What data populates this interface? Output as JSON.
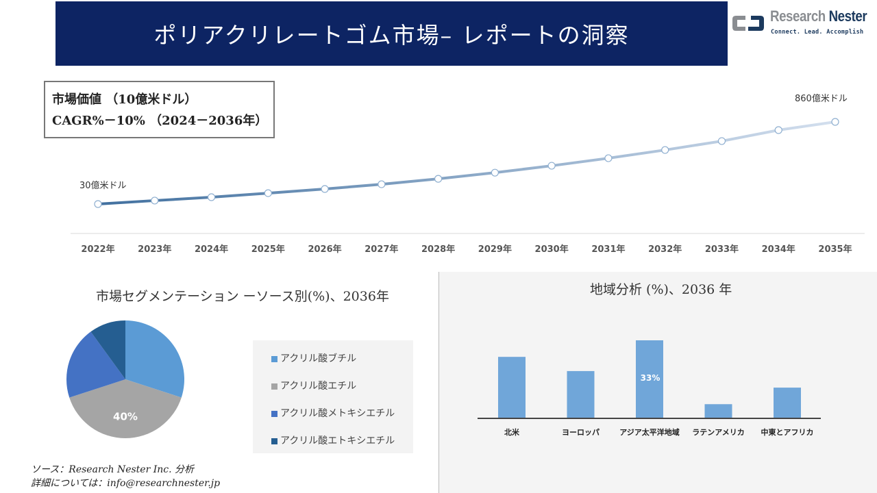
{
  "header": {
    "title": "ポリアクリレートゴム市場– レポートの洞察"
  },
  "logo": {
    "name_part1": "Research",
    "name_part2": "Nester",
    "tagline": "Connect. Lead. Accomplish"
  },
  "infobox": {
    "line1": "市場価値 （10億米ドル）",
    "line2": "CAGR%－10% （2024－2036年）"
  },
  "chart_data": [
    {
      "type": "line",
      "categories": [
        "2022年",
        "2023年",
        "2024年",
        "2025年",
        "2026年",
        "2027年",
        "2028年",
        "2029年",
        "2030年",
        "2031年",
        "2032年",
        "2033年",
        "2034年",
        "2035年"
      ],
      "values": [
        30,
        65,
        99,
        140,
        182,
        230,
        285,
        347,
        417,
        493,
        576,
        666,
        777,
        860
      ],
      "unit": "億米ドル",
      "start_label": "30億米ドル",
      "end_label": "860億米ドル",
      "colors": {
        "start": "#41709f",
        "end": "#d3dfee"
      },
      "grid": false
    },
    {
      "type": "pie",
      "title": "市場セグメンテーション ーソース別(%)、2036年",
      "categories": [
        "アクリル酸ブチル",
        "アクリル酸エチル",
        "アクリル酸メトキシエチル",
        "アクリル酸エトキシエチル"
      ],
      "values": [
        30,
        40,
        20,
        10
      ],
      "colors": [
        "#5b9bd5",
        "#a5a5a5",
        "#4472c4",
        "#255e91"
      ],
      "data_labels": [
        "",
        "40%",
        "",
        ""
      ],
      "legend": "right"
    },
    {
      "type": "bar",
      "title": "地域分析 (%)、2036 年",
      "categories": [
        "北米",
        "ヨーロッパ",
        "アジア太平洋地域",
        "ラテンアメリカ",
        "中東とアフリカ"
      ],
      "values": [
        26,
        20,
        33,
        6,
        13
      ],
      "data_labels": [
        "",
        "",
        "33%",
        "",
        ""
      ],
      "color": "#70a6d9"
    }
  ],
  "source": {
    "line1": "ソース：Research Nester Inc. 分析",
    "line2": "詳細については：info@researchnester.jp"
  }
}
